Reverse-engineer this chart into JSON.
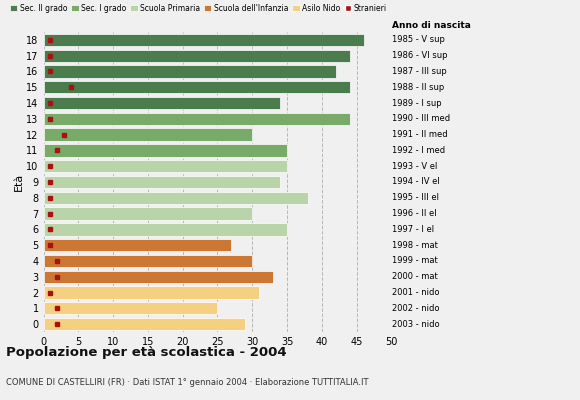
{
  "ages": [
    0,
    1,
    2,
    3,
    4,
    5,
    6,
    7,
    8,
    9,
    10,
    11,
    12,
    13,
    14,
    15,
    16,
    17,
    18
  ],
  "years": [
    "2003 - nido",
    "2002 - nido",
    "2001 - nido",
    "2000 - mat",
    "1999 - mat",
    "1998 - mat",
    "1997 - I el",
    "1996 - II el",
    "1995 - III el",
    "1994 - IV el",
    "1993 - V el",
    "1992 - I med",
    "1991 - II med",
    "1990 - III med",
    "1989 - I sup",
    "1988 - II sup",
    "1987 - III sup",
    "1986 - VI sup",
    "1985 - V sup"
  ],
  "values": [
    29,
    25,
    31,
    33,
    30,
    27,
    35,
    30,
    38,
    34,
    35,
    35,
    30,
    44,
    34,
    44,
    42,
    44,
    46
  ],
  "stranieri": [
    2,
    2,
    1,
    2,
    2,
    1,
    1,
    1,
    1,
    1,
    1,
    2,
    3,
    1,
    1,
    4,
    1,
    1,
    1
  ],
  "bar_colors": [
    "#f5d080",
    "#f5d080",
    "#f5d080",
    "#cc7733",
    "#cc7733",
    "#cc7733",
    "#b8d4a8",
    "#b8d4a8",
    "#b8d4a8",
    "#b8d4a8",
    "#b8d4a8",
    "#7aaa6a",
    "#7aaa6a",
    "#7aaa6a",
    "#4a7c4e",
    "#4a7c4e",
    "#4a7c4e",
    "#4a7c4e",
    "#4a7c4e"
  ],
  "stranieri_color": "#aa1111",
  "title": "Popolazione per età scolastica - 2004",
  "subtitle": "COMUNE DI CASTELLIRI (FR) · Dati ISTAT 1° gennaio 2004 · Elaborazione TUTTITALIA.IT",
  "ylabel": "Età",
  "xlim": [
    0,
    50
  ],
  "xticks": [
    0,
    5,
    10,
    15,
    20,
    25,
    30,
    35,
    40,
    45,
    50
  ],
  "legend_labels": [
    "Sec. II grado",
    "Sec. I grado",
    "Scuola Primaria",
    "Scuola dell'Infanzia",
    "Asilo Nido",
    "Stranieri"
  ],
  "legend_colors": [
    "#4a7c4e",
    "#7aaa6a",
    "#b8d4a8",
    "#cc7733",
    "#f5d080",
    "#aa1111"
  ],
  "bg_color": "#f0f0f0",
  "anno_label": "Anno di nascita"
}
